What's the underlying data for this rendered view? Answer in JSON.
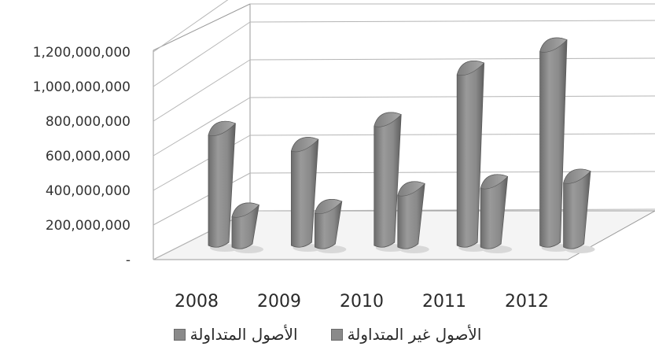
{
  "chart_data": {
    "type": "bar",
    "categories": [
      "2008",
      "2009",
      "2010",
      "2011",
      "2012"
    ],
    "series": [
      {
        "name": "الأصول غير المتداولة",
        "values": [
          620000000,
          530000000,
          670000000,
          960000000,
          1090000000
        ]
      },
      {
        "name": "الأصول المتداولة",
        "values": [
          170000000,
          190000000,
          290000000,
          330000000,
          360000000
        ]
      }
    ],
    "yticks": [
      "-",
      "200,000,000",
      "400,000,000",
      "600,000,000",
      "800,000,000",
      "1,000,000,000",
      "1,200,000,000"
    ],
    "ylim": [
      0,
      1200000000
    ],
    "grid": true,
    "legend_position": "bottom",
    "bar_color": "#8a8a8a"
  }
}
